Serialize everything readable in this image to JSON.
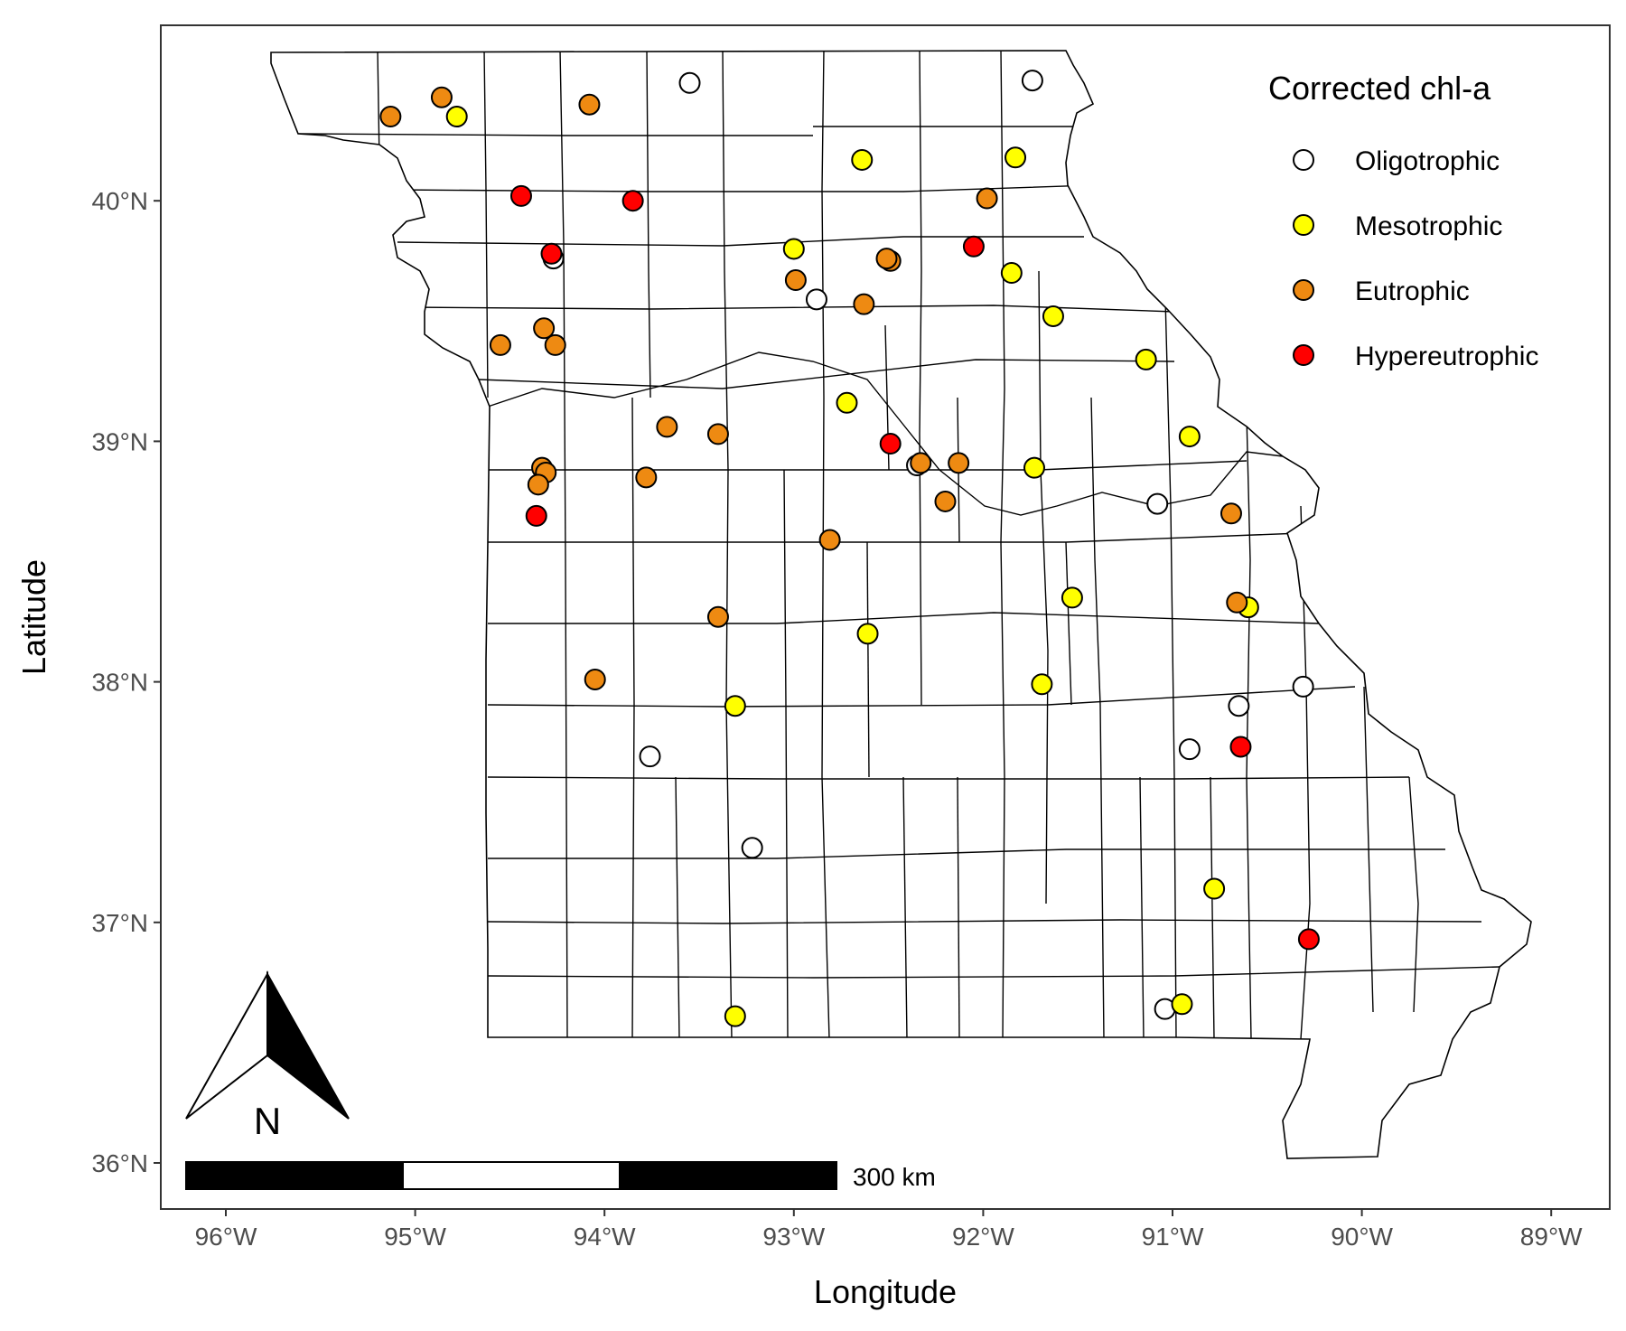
{
  "chart_data": {
    "type": "scatter",
    "subject": "Missouri county map with lake sampling sites",
    "xlabel": "Longitude",
    "ylabel": "Latitude",
    "x_range": [
      -96.35,
      -88.7
    ],
    "y_range": [
      35.78,
      40.75
    ],
    "x_ticks": [
      {
        "value": -96,
        "label": "96°W"
      },
      {
        "value": -95,
        "label": "95°W"
      },
      {
        "value": -94,
        "label": "94°W"
      },
      {
        "value": -93,
        "label": "93°W"
      },
      {
        "value": -92,
        "label": "92°W"
      },
      {
        "value": -91,
        "label": "91°W"
      },
      {
        "value": -90,
        "label": "90°W"
      },
      {
        "value": -89,
        "label": "89°W"
      }
    ],
    "y_ticks": [
      {
        "value": 36,
        "label": "36°N"
      },
      {
        "value": 37,
        "label": "37°N"
      },
      {
        "value": 38,
        "label": "38°N"
      },
      {
        "value": 39,
        "label": "39°N"
      },
      {
        "value": 40,
        "label": "40°N"
      }
    ],
    "grid": false,
    "legend": {
      "title": "Corrected chl-a",
      "placement": "top-right",
      "entries": [
        {
          "key": "oligo",
          "label": "Oligotrophic",
          "color": "#ffffff"
        },
        {
          "key": "meso",
          "label": "Mesotrophic",
          "color": "#ffff00"
        },
        {
          "key": "eu",
          "label": "Eutrophic",
          "color": "#ee8a12"
        },
        {
          "key": "hyper",
          "label": "Hypereutrophic",
          "color": "#ff0000"
        }
      ]
    },
    "scale_bar": {
      "label": "300 km"
    },
    "north_arrow": {
      "label": "N"
    },
    "points": [
      {
        "lon": -93.55,
        "lat": 40.49,
        "cls": "oligo"
      },
      {
        "lon": -91.74,
        "lat": 40.5,
        "cls": "oligo"
      },
      {
        "lon": -92.88,
        "lat": 39.59,
        "cls": "oligo"
      },
      {
        "lon": -92.35,
        "lat": 38.9,
        "cls": "oligo"
      },
      {
        "lon": -91.08,
        "lat": 38.74,
        "cls": "oligo"
      },
      {
        "lon": -90.31,
        "lat": 37.98,
        "cls": "oligo"
      },
      {
        "lon": -90.65,
        "lat": 37.9,
        "cls": "oligo"
      },
      {
        "lon": -90.91,
        "lat": 37.72,
        "cls": "oligo"
      },
      {
        "lon": -93.76,
        "lat": 37.69,
        "cls": "oligo"
      },
      {
        "lon": -93.22,
        "lat": 37.31,
        "cls": "oligo"
      },
      {
        "lon": -91.04,
        "lat": 36.64,
        "cls": "oligo"
      },
      {
        "lon": -94.27,
        "lat": 39.76,
        "cls": "oligo"
      },
      {
        "lon": -94.78,
        "lat": 40.35,
        "cls": "meso"
      },
      {
        "lon": -92.64,
        "lat": 40.17,
        "cls": "meso"
      },
      {
        "lon": -91.83,
        "lat": 40.18,
        "cls": "meso"
      },
      {
        "lon": -93.0,
        "lat": 39.8,
        "cls": "meso"
      },
      {
        "lon": -91.85,
        "lat": 39.7,
        "cls": "meso"
      },
      {
        "lon": -91.63,
        "lat": 39.52,
        "cls": "meso"
      },
      {
        "lon": -91.14,
        "lat": 39.34,
        "cls": "meso"
      },
      {
        "lon": -92.72,
        "lat": 39.16,
        "cls": "meso"
      },
      {
        "lon": -90.91,
        "lat": 39.02,
        "cls": "meso"
      },
      {
        "lon": -91.73,
        "lat": 38.89,
        "cls": "meso"
      },
      {
        "lon": -91.53,
        "lat": 38.35,
        "cls": "meso"
      },
      {
        "lon": -90.6,
        "lat": 38.31,
        "cls": "meso"
      },
      {
        "lon": -92.61,
        "lat": 38.2,
        "cls": "meso"
      },
      {
        "lon": -91.69,
        "lat": 37.99,
        "cls": "meso"
      },
      {
        "lon": -93.31,
        "lat": 37.9,
        "cls": "meso"
      },
      {
        "lon": -90.78,
        "lat": 37.14,
        "cls": "meso"
      },
      {
        "lon": -90.95,
        "lat": 36.66,
        "cls": "meso"
      },
      {
        "lon": -93.31,
        "lat": 36.61,
        "cls": "meso"
      },
      {
        "lon": -95.13,
        "lat": 40.35,
        "cls": "eu"
      },
      {
        "lon": -94.86,
        "lat": 40.43,
        "cls": "eu"
      },
      {
        "lon": -94.08,
        "lat": 40.4,
        "cls": "eu"
      },
      {
        "lon": -91.98,
        "lat": 40.01,
        "cls": "eu"
      },
      {
        "lon": -92.49,
        "lat": 39.75,
        "cls": "eu"
      },
      {
        "lon": -92.51,
        "lat": 39.76,
        "cls": "eu"
      },
      {
        "lon": -92.99,
        "lat": 39.67,
        "cls": "eu"
      },
      {
        "lon": -92.63,
        "lat": 39.57,
        "cls": "eu"
      },
      {
        "lon": -94.55,
        "lat": 39.4,
        "cls": "eu"
      },
      {
        "lon": -94.32,
        "lat": 39.47,
        "cls": "eu"
      },
      {
        "lon": -94.26,
        "lat": 39.4,
        "cls": "eu"
      },
      {
        "lon": -93.67,
        "lat": 39.06,
        "cls": "eu"
      },
      {
        "lon": -93.4,
        "lat": 39.03,
        "cls": "eu"
      },
      {
        "lon": -92.13,
        "lat": 38.91,
        "cls": "eu"
      },
      {
        "lon": -92.33,
        "lat": 38.91,
        "cls": "eu"
      },
      {
        "lon": -92.2,
        "lat": 38.75,
        "cls": "eu"
      },
      {
        "lon": -94.33,
        "lat": 38.89,
        "cls": "eu"
      },
      {
        "lon": -94.31,
        "lat": 38.87,
        "cls": "eu"
      },
      {
        "lon": -94.35,
        "lat": 38.82,
        "cls": "eu"
      },
      {
        "lon": -93.78,
        "lat": 38.85,
        "cls": "eu"
      },
      {
        "lon": -90.69,
        "lat": 38.7,
        "cls": "eu"
      },
      {
        "lon": -92.81,
        "lat": 38.59,
        "cls": "eu"
      },
      {
        "lon": -90.66,
        "lat": 38.33,
        "cls": "eu"
      },
      {
        "lon": -93.4,
        "lat": 38.27,
        "cls": "eu"
      },
      {
        "lon": -94.05,
        "lat": 38.01,
        "cls": "eu"
      },
      {
        "lon": -94.44,
        "lat": 40.02,
        "cls": "hyper"
      },
      {
        "lon": -93.85,
        "lat": 40.0,
        "cls": "hyper"
      },
      {
        "lon": -94.28,
        "lat": 39.78,
        "cls": "hyper"
      },
      {
        "lon": -92.05,
        "lat": 39.81,
        "cls": "hyper"
      },
      {
        "lon": -92.49,
        "lat": 38.99,
        "cls": "hyper"
      },
      {
        "lon": -94.36,
        "lat": 38.69,
        "cls": "hyper"
      },
      {
        "lon": -90.64,
        "lat": 37.73,
        "cls": "hyper"
      },
      {
        "lon": -90.28,
        "lat": 36.93,
        "cls": "hyper"
      }
    ]
  }
}
